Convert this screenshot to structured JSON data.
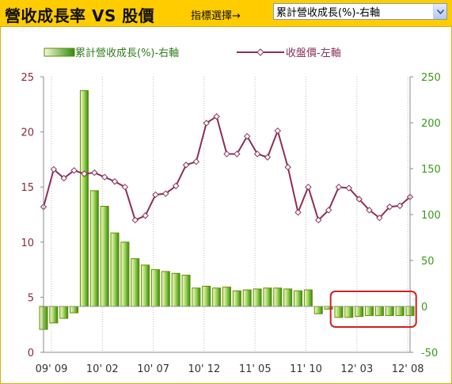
{
  "header": {
    "title": "營收成長率 VS 股價",
    "selector_label": "指標選擇→",
    "selector_value": "累計營收成長(%)-右軸"
  },
  "chart_data": {
    "type": "bar+line",
    "legend": {
      "bar_label": "累計營收成長(%)-右軸",
      "line_label": "收盤價-左軸"
    },
    "x_tick_labels": [
      "09' 09",
      "10' 02",
      "10' 07",
      "10' 12",
      "11' 05",
      "11' 10",
      "12' 03",
      "12' 08"
    ],
    "left_axis": {
      "min": 0,
      "max": 25,
      "ticks": [
        0,
        5,
        10,
        15,
        20,
        25
      ],
      "color": "#8b2a3a"
    },
    "right_axis": {
      "min": -50,
      "max": 250,
      "ticks": [
        "-50",
        "0",
        "50",
        "100",
        "150",
        "200",
        "250"
      ],
      "color": "#3a9a18"
    },
    "series": [
      {
        "name": "收盤價-左軸",
        "axis": "left",
        "color": "#8b2f5b",
        "values": [
          13.2,
          16.6,
          15.8,
          16.5,
          16.2,
          16.3,
          15.9,
          15.5,
          15.0,
          12.0,
          12.4,
          14.3,
          14.4,
          15.1,
          17.0,
          17.3,
          20.8,
          21.4,
          18.0,
          18.0,
          19.6,
          18.0,
          17.7,
          20.1,
          16.8,
          12.7,
          15.0,
          12.0,
          12.9,
          15.0,
          14.9,
          13.9,
          12.9,
          12.2,
          13.2,
          13.3,
          14.1
        ]
      },
      {
        "name": "累計營收成長(%)-右軸",
        "axis": "right",
        "color": "#4a9c14",
        "values": [
          -25,
          -18,
          -13,
          -7,
          235,
          126,
          109,
          80,
          70,
          52,
          45,
          40,
          38,
          36,
          34,
          20,
          22,
          20,
          21,
          17,
          18,
          19,
          20,
          20,
          19,
          17,
          18,
          -8,
          -3,
          -12,
          -12,
          -11,
          -10,
          -10,
          -10,
          -10,
          -10
        ]
      }
    ],
    "highlight": {
      "label": "",
      "from_index": 29,
      "to_index": 36,
      "color": "#d02020"
    },
    "grid": "vertical dotted",
    "legend_position": "top"
  }
}
